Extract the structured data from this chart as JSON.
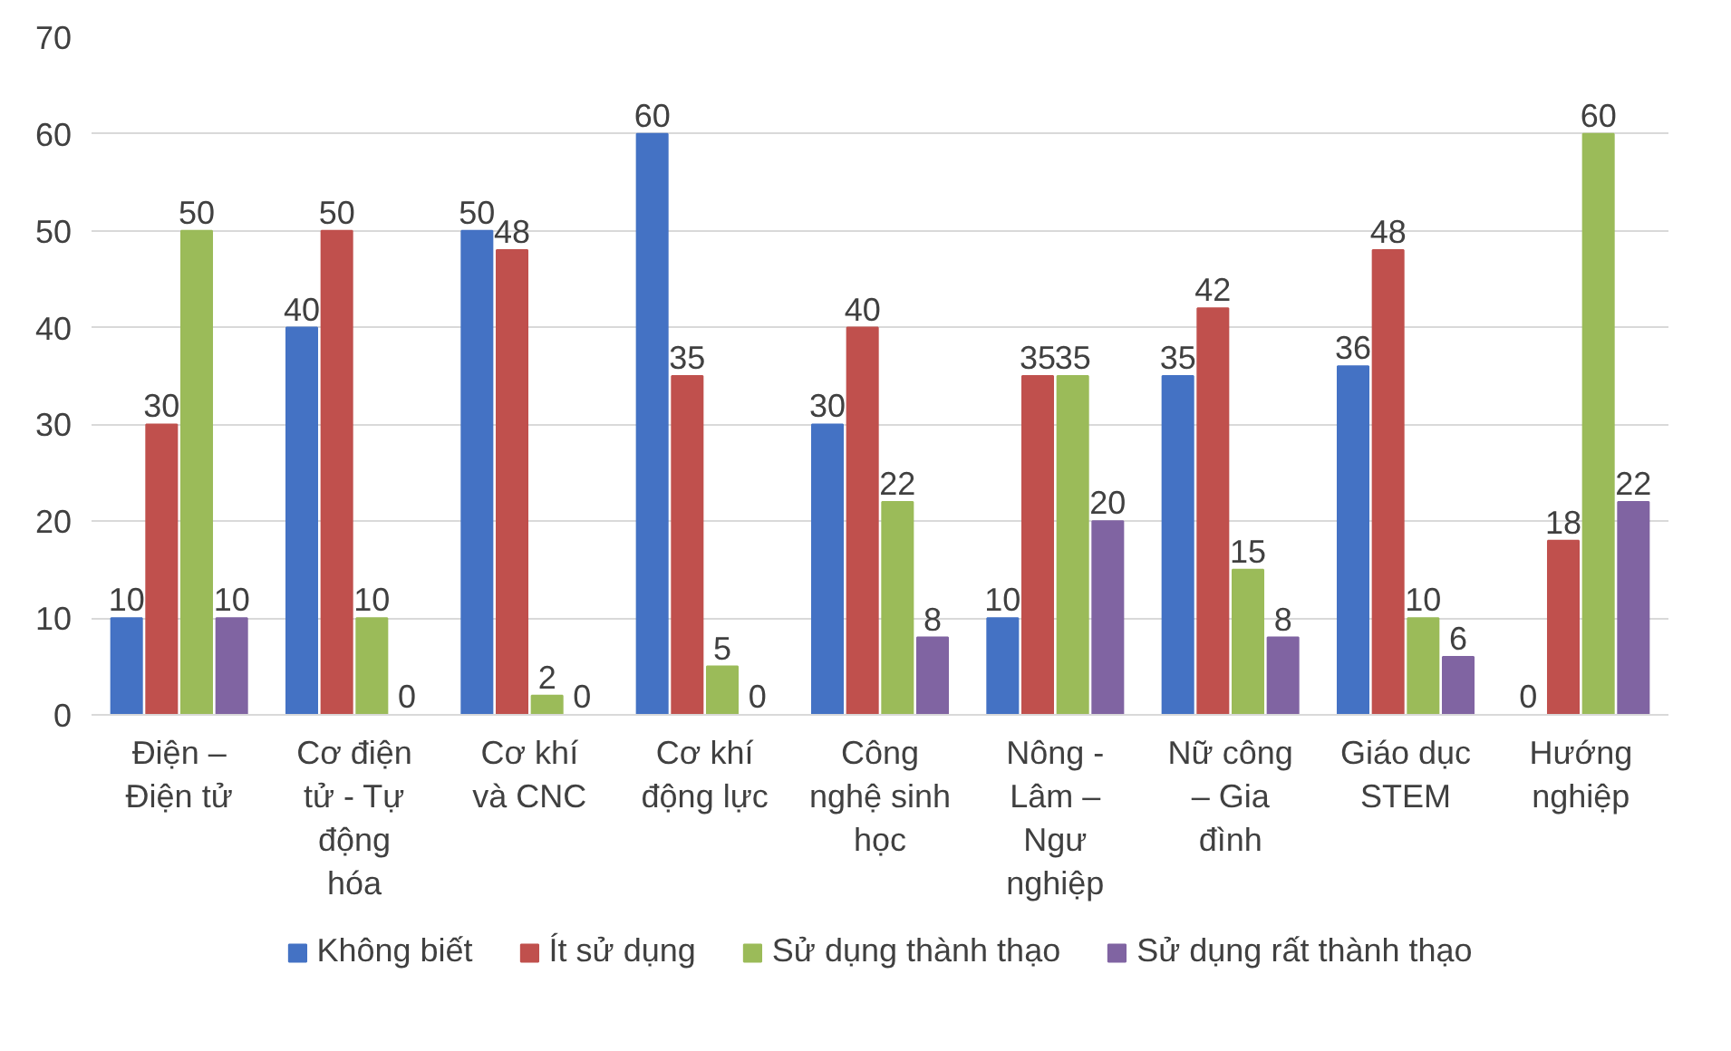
{
  "chart_data": {
    "type": "bar",
    "categories": [
      "Điện –\nĐiện tử",
      "Cơ điện\ntử - Tự\nđộng\nhóa",
      "Cơ khí\nvà CNC",
      "Cơ khí\nđộng lực",
      "Công\nnghệ sinh\nhọc",
      "Nông -\nLâm –\nNgư\nnghiệp",
      "Nữ công\n– Gia\nđình",
      "Giáo dục\nSTEM",
      "Hướng\nnghiệp"
    ],
    "series": [
      {
        "name": "Không biết",
        "color": "#4472c4",
        "values": [
          10,
          40,
          50,
          60,
          30,
          10,
          35,
          36,
          0
        ]
      },
      {
        "name": "Ít sử dụng",
        "color": "#c0504d",
        "values": [
          30,
          50,
          48,
          35,
          40,
          35,
          42,
          48,
          18
        ]
      },
      {
        "name": "Sử dụng thành thạo",
        "color": "#9bbb59",
        "values": [
          50,
          10,
          2,
          5,
          22,
          35,
          15,
          10,
          60
        ]
      },
      {
        "name": "Sử dụng rất thành thạo",
        "color": "#8064a2",
        "values": [
          10,
          0,
          0,
          0,
          8,
          20,
          8,
          6,
          22
        ]
      }
    ],
    "ylim": [
      0,
      70
    ],
    "yticks": [
      0,
      10,
      20,
      30,
      40,
      50,
      60,
      70
    ],
    "grid": "y",
    "legend": "bottom",
    "data_labels": true
  }
}
